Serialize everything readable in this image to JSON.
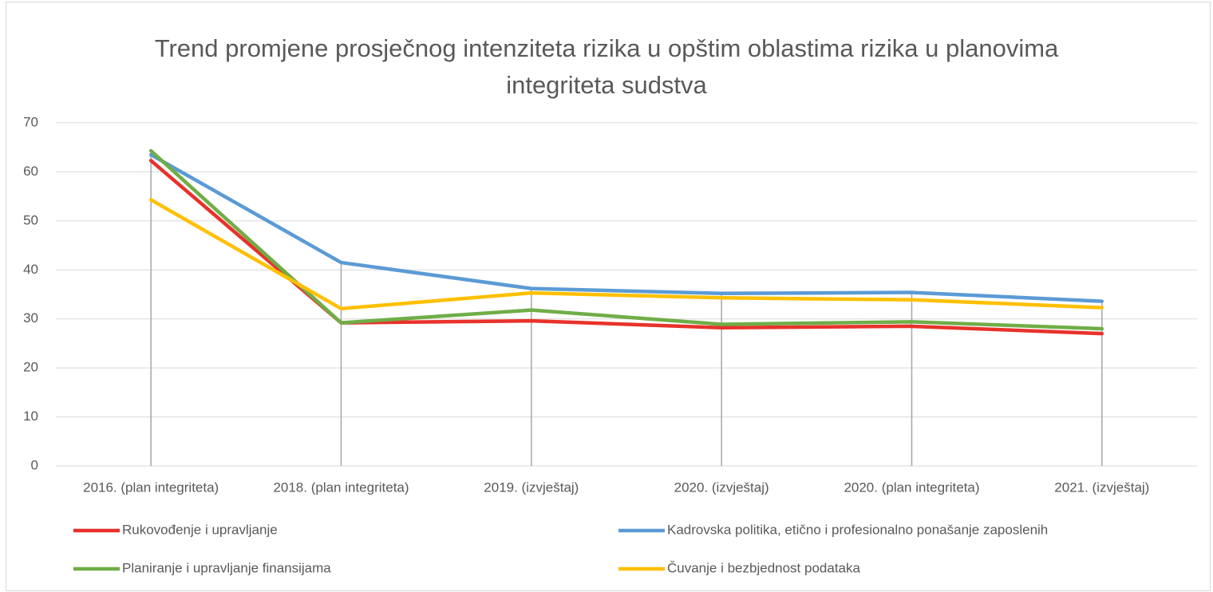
{
  "chart_data": {
    "type": "line",
    "title": "Trend promjene prosječnog intenziteta rizika u opštim oblastima rizika u planovima integriteta sudstva",
    "categories": [
      "2016. (plan integriteta)",
      "2018. (plan integriteta)",
      "2019. (izvještaj)",
      "2020. (izvještaj)",
      "2020. (plan integriteta)",
      "2021. (izvještaj)"
    ],
    "series": [
      {
        "name": "Rukovođenje i upravljanje",
        "color": "#e8322b",
        "values": [
          62.3,
          29.2,
          29.6,
          28.2,
          28.5,
          27.0
        ]
      },
      {
        "name": "Kadrovska politika, etično i profesionalno ponašanje zaposlenih",
        "color": "#5b9bd5",
        "values": [
          63.5,
          41.5,
          36.2,
          35.2,
          35.4,
          33.6
        ]
      },
      {
        "name": "Planiranje i upravljanje finansijama",
        "color": "#70ad47",
        "values": [
          64.3,
          29.2,
          31.8,
          28.9,
          29.4,
          28.0
        ]
      },
      {
        "name": "Čuvanje i bezbjednost podataka",
        "color": "#ffc000",
        "values": [
          54.3,
          32.1,
          35.3,
          34.3,
          33.9,
          32.3
        ]
      }
    ],
    "ylim": [
      0,
      70
    ],
    "yticks": [
      0,
      10,
      20,
      30,
      40,
      50,
      60,
      70
    ],
    "grid": true,
    "legend": "bottom"
  }
}
